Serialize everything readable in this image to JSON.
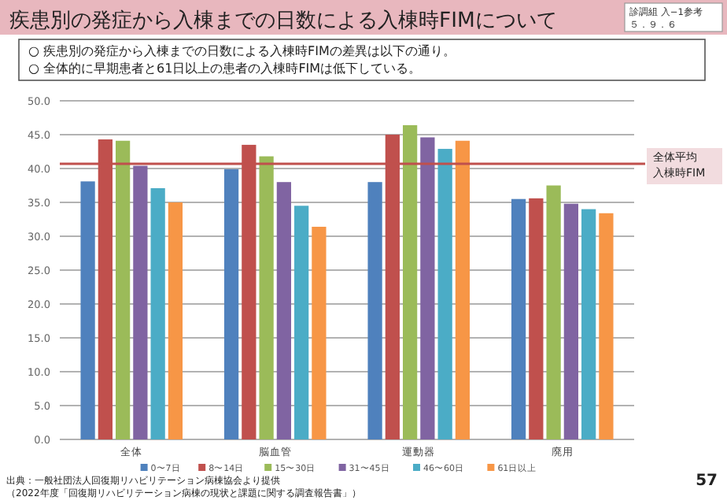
{
  "chart_data": {
    "type": "bar",
    "title": "疾患別の発症から入棟までの日数による入棟時FIMについて",
    "categories": [
      "全体",
      "脳血管",
      "運動器",
      "廃用"
    ],
    "series": [
      {
        "name": "0〜7日",
        "color": "#4f81bd",
        "values": [
          38.1,
          39.9,
          38.0,
          35.5
        ]
      },
      {
        "name": "8〜14日",
        "color": "#c0504d",
        "values": [
          44.3,
          43.5,
          45.0,
          35.6
        ]
      },
      {
        "name": "15〜30日",
        "color": "#9bbb59",
        "values": [
          44.1,
          41.8,
          46.4,
          37.5
        ]
      },
      {
        "name": "31〜45日",
        "color": "#8064a2",
        "values": [
          40.4,
          38.0,
          44.6,
          34.8
        ]
      },
      {
        "name": "46〜60日",
        "color": "#4bacc6",
        "values": [
          37.1,
          34.5,
          42.9,
          34.0
        ]
      },
      {
        "name": "61日以上",
        "color": "#f79646",
        "values": [
          35.0,
          31.4,
          44.1,
          33.4
        ]
      }
    ],
    "ylim": [
      0,
      50
    ],
    "yticks": [
      {
        "value": 0,
        "label": "0.0"
      },
      {
        "value": 5,
        "label": "5.0"
      },
      {
        "value": 10,
        "label": "10.0"
      },
      {
        "value": 15,
        "label": "15.0"
      },
      {
        "value": 20,
        "label": "20.0"
      },
      {
        "value": 25,
        "label": "25.0"
      },
      {
        "value": 30,
        "label": "30.0"
      },
      {
        "value": 35,
        "label": "35.0"
      },
      {
        "value": 40,
        "label": "40.0"
      },
      {
        "value": 45,
        "label": "45.0"
      },
      {
        "value": 50,
        "label": "50.0"
      }
    ],
    "grid": "y",
    "legend": "bottom",
    "ref_lines": [
      {
        "axis": "y",
        "value": 40.7,
        "label": "全体平均入棟時FIM",
        "color": "#c0504d"
      }
    ],
    "annotations": [
      "診調組 入−1参考",
      "○ 疾患別の発症から入棟までの日数による入棟時FIMの差異は以下の通り。\n○ 全体的に早期患者と61日以上の患者の入棟時FIMは低下している。",
      "出典：一般社団法人回復期リハビリテーション病棟協会より提供",
      "57",
      "５．９．６",
      "（2022年度「回復期リハビリテーション病棟の現状と課題に関する調査報告書」）"
    ]
  }
}
